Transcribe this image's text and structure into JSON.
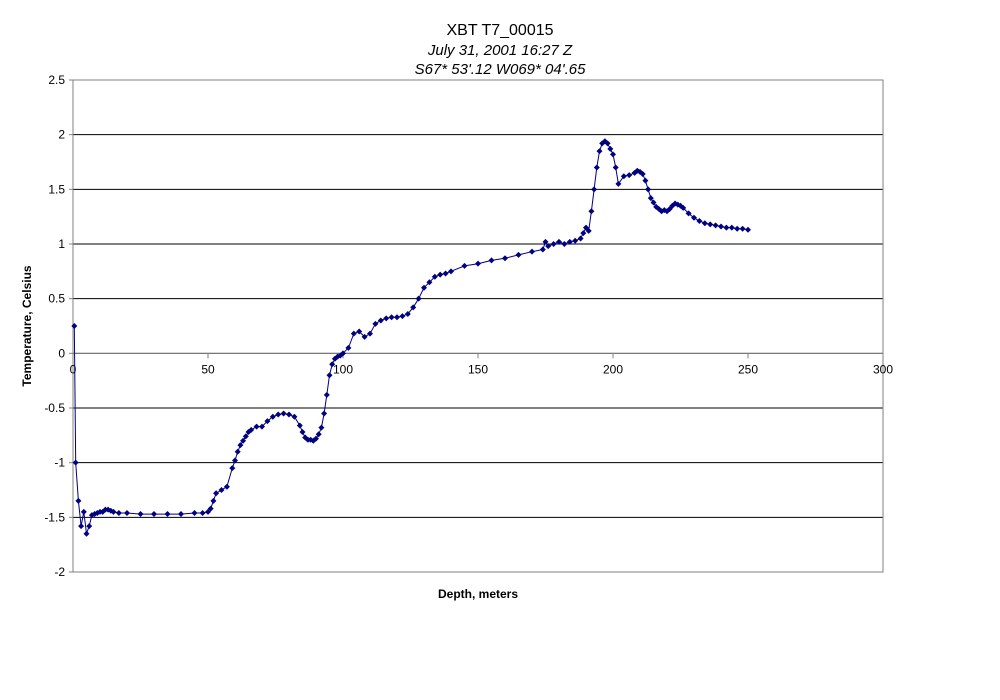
{
  "chart_data": {
    "type": "scatter",
    "title": "XBT T7_00015",
    "subtitle": "July 31, 2001  16:27 Z",
    "subtitle2": "S67* 53'.12  W069* 04'.65",
    "xlabel": "Depth, meters",
    "ylabel": "Temperature, Celsius",
    "xlim": [
      0,
      300
    ],
    "ylim": [
      -2,
      2.5
    ],
    "xticks": [
      "0",
      "50",
      "100",
      "150",
      "200",
      "250",
      "300"
    ],
    "yticks": [
      "2.5",
      "2",
      "1.5",
      "1",
      "0.5",
      "0",
      "-0.5",
      "-1",
      "-1.5",
      "-2"
    ],
    "grid": "horizontal",
    "legend": "none",
    "colors": {
      "series": "#000080",
      "grid": "#000000",
      "axis": "#808080"
    },
    "series": [
      {
        "x": [
          0.5,
          1,
          2,
          3,
          4,
          5,
          6,
          7,
          8,
          9,
          10,
          11,
          12,
          13,
          14,
          15,
          17,
          20,
          25,
          30,
          35,
          40,
          45,
          48,
          50,
          51,
          52,
          53,
          55,
          57,
          59,
          60,
          61,
          62,
          63,
          64,
          65,
          66,
          68,
          70,
          72,
          74,
          76,
          78,
          80,
          82,
          84,
          85,
          86,
          87,
          88,
          89,
          90,
          91,
          92,
          93,
          94,
          95,
          96,
          97,
          98,
          99,
          100,
          102,
          104,
          106,
          108,
          110,
          112,
          114,
          116,
          118,
          120,
          122,
          124,
          126,
          128,
          130,
          132,
          134,
          136,
          138,
          140,
          145,
          150,
          155,
          160,
          165,
          170,
          174,
          175,
          176,
          178,
          180,
          182,
          184,
          186,
          188,
          189,
          190,
          191,
          192,
          193,
          194,
          195,
          196,
          197,
          198,
          199,
          200,
          201,
          202,
          204,
          206,
          208,
          209,
          210,
          211,
          212,
          213,
          214,
          215,
          216,
          217,
          218,
          219,
          220,
          221,
          222,
          223,
          224,
          225,
          226,
          228,
          230,
          232,
          234,
          236,
          238,
          240,
          242,
          244,
          246,
          248,
          250
        ],
        "y": [
          0.25,
          -1.0,
          -1.35,
          -1.58,
          -1.45,
          -1.65,
          -1.58,
          -1.48,
          -1.47,
          -1.46,
          -1.45,
          -1.45,
          -1.43,
          -1.43,
          -1.44,
          -1.45,
          -1.46,
          -1.46,
          -1.47,
          -1.47,
          -1.47,
          -1.47,
          -1.46,
          -1.46,
          -1.45,
          -1.42,
          -1.35,
          -1.28,
          -1.25,
          -1.22,
          -1.05,
          -0.98,
          -0.9,
          -0.84,
          -0.8,
          -0.76,
          -0.72,
          -0.7,
          -0.67,
          -0.67,
          -0.62,
          -0.58,
          -0.56,
          -0.55,
          -0.56,
          -0.58,
          -0.66,
          -0.72,
          -0.77,
          -0.79,
          -0.79,
          -0.8,
          -0.78,
          -0.74,
          -0.68,
          -0.55,
          -0.38,
          -0.2,
          -0.1,
          -0.05,
          -0.03,
          -0.02,
          0.0,
          0.05,
          0.18,
          0.2,
          0.15,
          0.18,
          0.27,
          0.3,
          0.32,
          0.33,
          0.33,
          0.34,
          0.36,
          0.42,
          0.5,
          0.6,
          0.65,
          0.7,
          0.72,
          0.73,
          0.75,
          0.8,
          0.82,
          0.85,
          0.87,
          0.9,
          0.93,
          0.95,
          1.02,
          0.98,
          1.0,
          1.02,
          1.0,
          1.02,
          1.03,
          1.05,
          1.1,
          1.15,
          1.12,
          1.3,
          1.5,
          1.7,
          1.85,
          1.92,
          1.94,
          1.92,
          1.87,
          1.82,
          1.7,
          1.55,
          1.62,
          1.63,
          1.65,
          1.67,
          1.66,
          1.64,
          1.58,
          1.5,
          1.42,
          1.38,
          1.34,
          1.32,
          1.3,
          1.31,
          1.3,
          1.32,
          1.35,
          1.37,
          1.36,
          1.35,
          1.33,
          1.28,
          1.24,
          1.21,
          1.19,
          1.18,
          1.17,
          1.16,
          1.15,
          1.15,
          1.14,
          1.14,
          1.13
        ]
      }
    ]
  }
}
